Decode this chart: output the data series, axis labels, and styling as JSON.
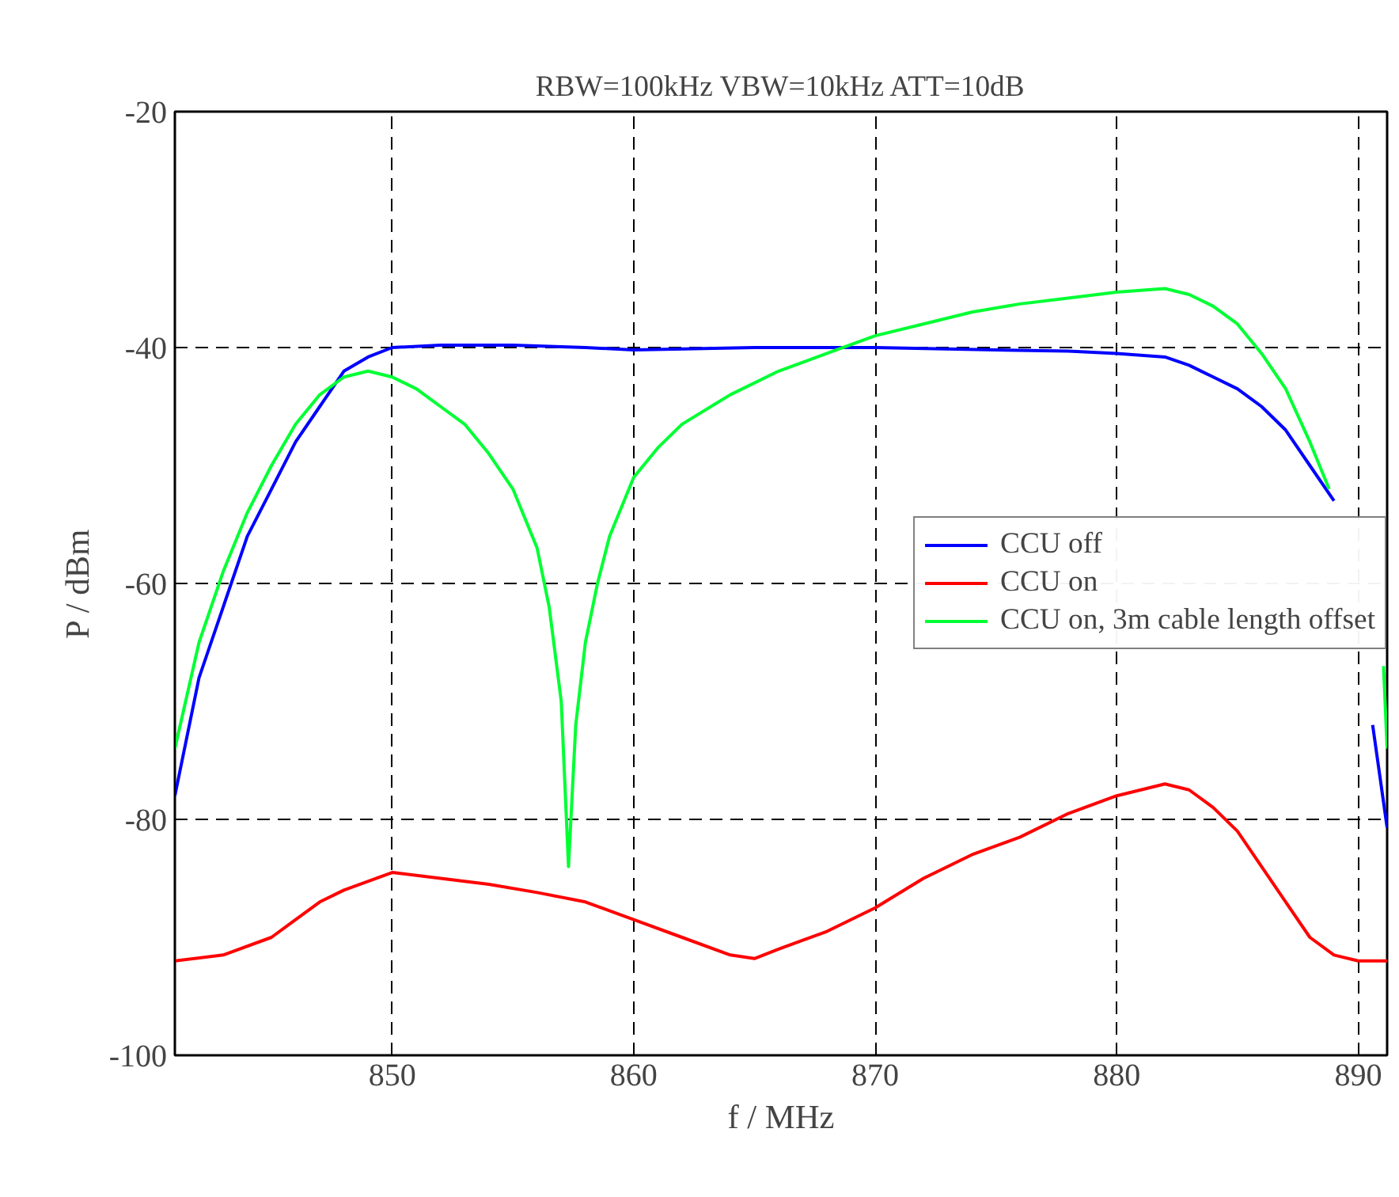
{
  "chart_data": {
    "type": "line",
    "title": "RBW=100kHz VBW=10kHz ATT=10dB",
    "xlabel": "f / MHz",
    "ylabel": "P / dBm",
    "xlim": [
      841,
      891.2
    ],
    "ylim": [
      -100,
      -20
    ],
    "xticks": [
      850,
      860,
      870,
      880,
      890
    ],
    "yticks": [
      -100,
      -80,
      -60,
      -40,
      -20
    ],
    "grid": true,
    "legend": "right",
    "line_style": "solid",
    "marker": "none",
    "series": [
      {
        "name": "CCU off",
        "color": "#0000ff",
        "x": [
          841,
          842,
          843,
          844,
          845,
          846,
          847,
          848,
          849,
          850,
          852,
          855,
          858,
          860,
          865,
          870,
          875,
          878,
          880,
          882,
          883,
          884,
          885,
          886,
          887,
          888,
          889,
          889.5,
          890.2,
          890.6,
          891.2
        ],
        "values": [
          -78,
          -68,
          -62,
          -56,
          -52,
          -48,
          -45,
          -42,
          -40.8,
          -40,
          -39.8,
          -39.8,
          -40,
          -40.2,
          -40,
          -40,
          -40.2,
          -40.3,
          -40.5,
          -40.8,
          -41.5,
          -42.5,
          -43.5,
          -45,
          -47,
          -50,
          -53,
          null,
          null,
          -72,
          -80.7
        ]
      },
      {
        "name": "CCU on",
        "color": "#ff0000",
        "x": [
          841,
          843,
          845,
          846,
          847,
          848,
          850,
          852,
          854,
          856,
          858,
          860,
          862,
          864,
          865,
          866,
          868,
          870,
          872,
          874,
          876,
          878,
          880,
          882,
          883,
          884,
          885,
          886,
          887,
          888,
          889,
          890,
          891.2
        ],
        "values": [
          -92,
          -91.5,
          -90,
          -88.5,
          -87,
          -86,
          -84.5,
          -85,
          -85.5,
          -86.2,
          -87,
          -88.5,
          -90,
          -91.5,
          -91.8,
          -91,
          -89.5,
          -87.5,
          -85,
          -83,
          -81.5,
          -79.5,
          -78,
          -77,
          -77.5,
          -79,
          -81,
          -84,
          -87,
          -90,
          -91.5,
          -92,
          -92
        ]
      },
      {
        "name": "CCU on, 3m cable length offset",
        "color": "#00ff33",
        "x": [
          841,
          842,
          843,
          844,
          845,
          846,
          847,
          848,
          849,
          850,
          851,
          852,
          853,
          854,
          855,
          856,
          856.5,
          857,
          857.3,
          857.6,
          858,
          858.5,
          859,
          860,
          861,
          862,
          864,
          866,
          868,
          870,
          872,
          874,
          876,
          878,
          880,
          882,
          883,
          884,
          885,
          886,
          887,
          888,
          888.8,
          889.5,
          891.05,
          891.2
        ],
        "values": [
          -74,
          -65,
          -59,
          -54,
          -50,
          -46.5,
          -44,
          -42.5,
          -42,
          -42.5,
          -43.5,
          -45,
          -46.5,
          -49,
          -52,
          -57,
          -62,
          -70,
          -84,
          -72,
          -65,
          -60,
          -56,
          -51,
          -48.5,
          -46.5,
          -44,
          -42,
          -40.5,
          -39,
          -38,
          -37,
          -36.3,
          -35.8,
          -35.3,
          -35,
          -35.5,
          -36.5,
          -38,
          -40.5,
          -43.5,
          -48,
          -52,
          null,
          -67,
          -74
        ]
      }
    ]
  }
}
